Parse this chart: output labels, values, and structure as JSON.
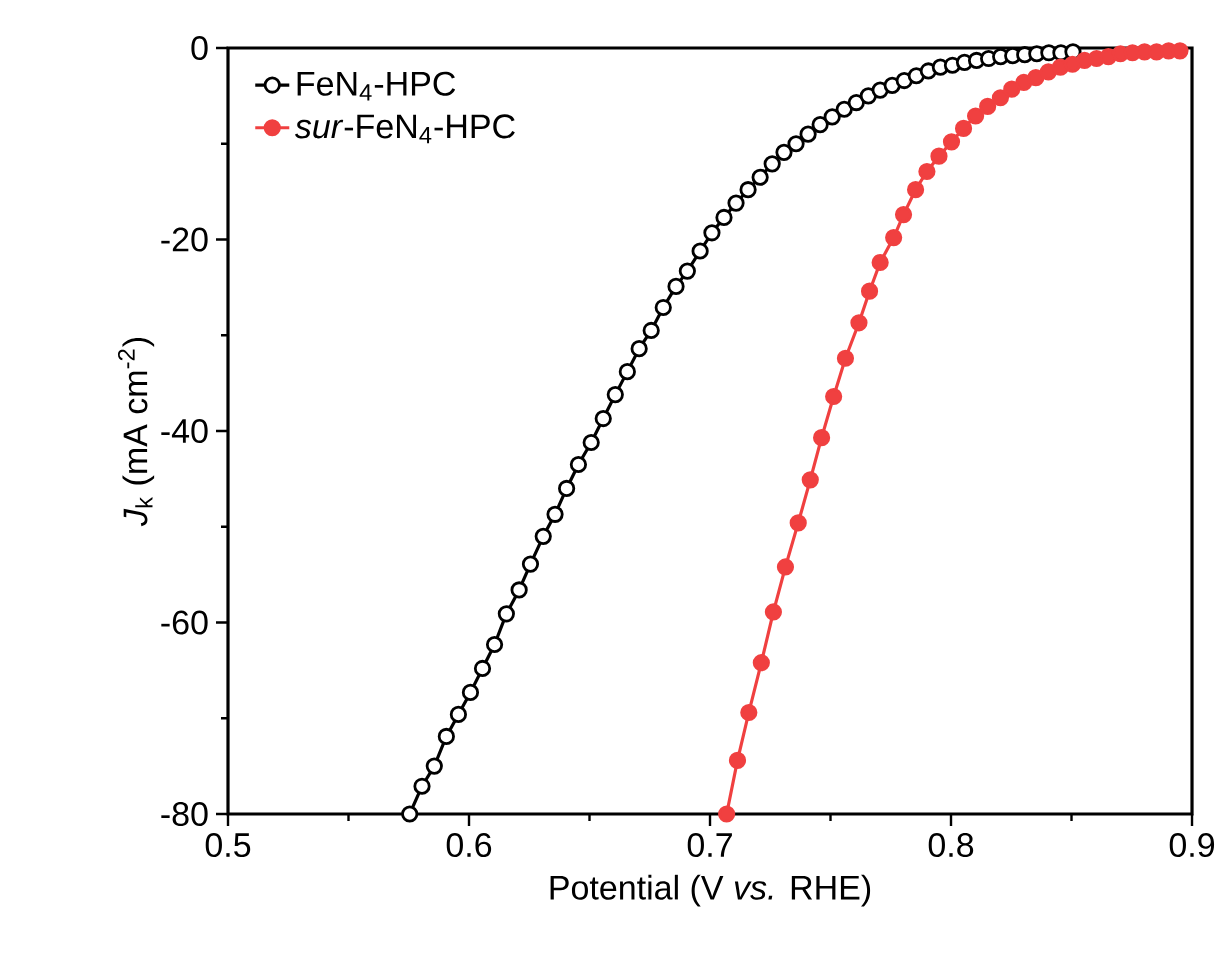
{
  "chart_data": {
    "type": "line",
    "xlabel": "Potential (V *vs.* RHE)",
    "ylabel": "*J*$_{k}$ (mA cm$^{-2}$)",
    "xlim": [
      0.5,
      0.9
    ],
    "ylim": [
      -80,
      0
    ],
    "xticks": [
      0.5,
      0.6,
      0.7,
      0.8,
      0.9
    ],
    "yticks": [
      -80,
      -60,
      -40,
      -20,
      0
    ],
    "legend": "top left",
    "marker": "circle",
    "line_style": "solid",
    "grid": false,
    "series": [
      {
        "name": "FeN$_{4}$-HPC",
        "color": "#000000",
        "x": [
          0.5754,
          0.5805,
          0.5856,
          0.5906,
          0.5956,
          0.6006,
          0.6056,
          0.6106,
          0.6155,
          0.6208,
          0.6255,
          0.6308,
          0.6357,
          0.6405,
          0.6454,
          0.6507,
          0.6557,
          0.6607,
          0.6657,
          0.6706,
          0.6756,
          0.6806,
          0.6859,
          0.6906,
          0.6959,
          0.7008,
          0.7058,
          0.7108,
          0.7158,
          0.7208,
          0.7258,
          0.7307,
          0.7357,
          0.7407,
          0.7457,
          0.7507,
          0.7557,
          0.7607,
          0.7657,
          0.7706,
          0.7756,
          0.7806,
          0.7856,
          0.7906,
          0.7956,
          0.8006,
          0.8056,
          0.8106,
          0.8156,
          0.8206,
          0.8256,
          0.8306,
          0.8356,
          0.8406,
          0.8456,
          0.8506
        ],
        "values": [
          -80.0,
          -77.1,
          -75.0,
          -71.9,
          -69.6,
          -67.3,
          -64.8,
          -62.3,
          -59.1,
          -56.6,
          -53.9,
          -51.0,
          -48.7,
          -46.0,
          -43.5,
          -41.2,
          -38.7,
          -36.2,
          -33.8,
          -31.4,
          -29.5,
          -27.1,
          -24.9,
          -23.3,
          -21.2,
          -19.3,
          -17.7,
          -16.2,
          -14.8,
          -13.5,
          -12.1,
          -10.9,
          -10.0,
          -9.0,
          -8.0,
          -7.2,
          -6.4,
          -5.7,
          -5.0,
          -4.4,
          -3.9,
          -3.4,
          -2.9,
          -2.4,
          -2.0,
          -1.8,
          -1.5,
          -1.3,
          -1.1,
          -0.9,
          -0.8,
          -0.7,
          -0.6,
          -0.5,
          -0.5,
          -0.4
        ]
      },
      {
        "name": "*sur*-FeN$_{4}$-HPC",
        "color": "#f04040",
        "x": [
          0.7069,
          0.7114,
          0.7161,
          0.7213,
          0.7263,
          0.7313,
          0.7366,
          0.7416,
          0.7463,
          0.7513,
          0.7562,
          0.7618,
          0.7662,
          0.7706,
          0.7762,
          0.7803,
          0.7853,
          0.79,
          0.795,
          0.8002,
          0.8052,
          0.8102,
          0.8152,
          0.8205,
          0.8252,
          0.8302,
          0.8352,
          0.8404,
          0.8454,
          0.8504,
          0.8554,
          0.8604,
          0.8653,
          0.8703,
          0.8753,
          0.8803,
          0.8853,
          0.8903,
          0.895
        ],
        "values": [
          -80.0,
          -74.4,
          -69.4,
          -64.2,
          -58.9,
          -54.2,
          -49.6,
          -45.1,
          -40.7,
          -36.4,
          -32.4,
          -28.7,
          -25.4,
          -22.4,
          -19.8,
          -17.4,
          -14.8,
          -12.9,
          -11.3,
          -9.8,
          -8.4,
          -7.1,
          -6.1,
          -5.2,
          -4.3,
          -3.6,
          -3.1,
          -2.5,
          -2.0,
          -1.7,
          -1.3,
          -1.1,
          -0.9,
          -0.6,
          -0.5,
          -0.4,
          -0.4,
          -0.3,
          -0.3
        ]
      }
    ]
  }
}
